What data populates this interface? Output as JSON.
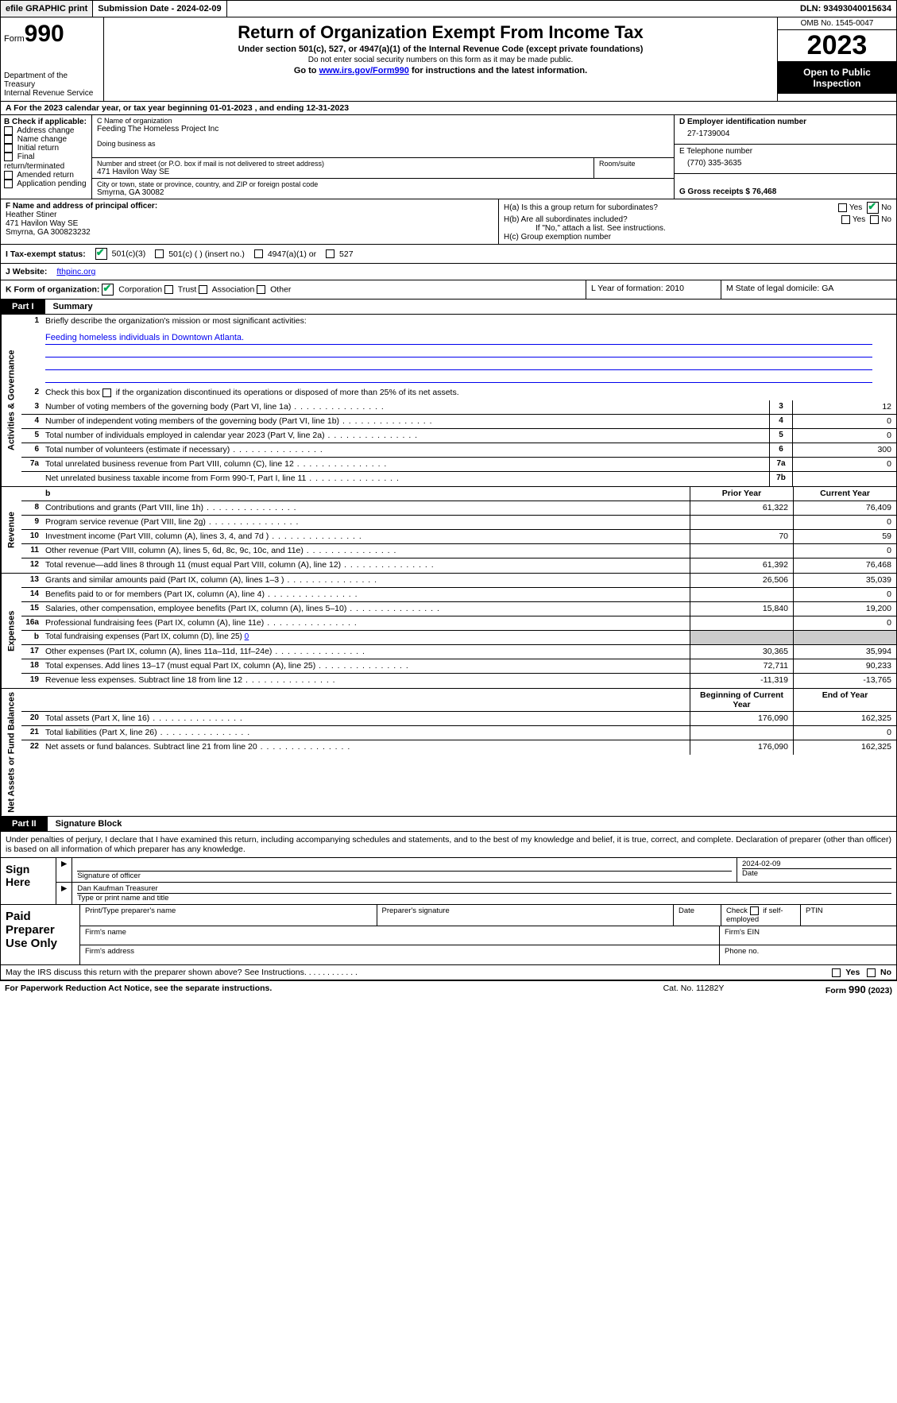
{
  "topbar": {
    "efile": "efile GRAPHIC print",
    "submission_label": "Submission Date - 2024-02-09",
    "dln_label": "DLN: 93493040015634"
  },
  "header": {
    "form_prefix": "Form",
    "form_num": "990",
    "dept": "Department of the Treasury",
    "irs": "Internal Revenue Service",
    "title": "Return of Organization Exempt From Income Tax",
    "sub1": "Under section 501(c), 527, or 4947(a)(1) of the Internal Revenue Code (except private foundations)",
    "sub2": "Do not enter social security numbers on this form as it may be made public.",
    "sub3_pre": "Go to ",
    "sub3_link": "www.irs.gov/Form990",
    "sub3_post": " for instructions and the latest information.",
    "omb": "OMB No. 1545-0047",
    "year": "2023",
    "open": "Open to Public Inspection"
  },
  "year_line": "For the 2023 calendar year, or tax year beginning 01-01-2023   , and ending 12-31-2023",
  "sectionB": {
    "title": "B Check if applicable:",
    "opts": [
      "Address change",
      "Name change",
      "Initial return",
      "Final return/terminated",
      "Amended return",
      "Application pending"
    ]
  },
  "sectionC": {
    "name_lbl": "C Name of organization",
    "name": "Feeding The Homeless Project Inc",
    "dba_lbl": "Doing business as",
    "addr_lbl": "Number and street (or P.O. box if mail is not delivered to street address)",
    "room_lbl": "Room/suite",
    "addr": "471 Havilon Way SE",
    "city_lbl": "City or town, state or province, country, and ZIP or foreign postal code",
    "city": "Smyrna, GA  30082"
  },
  "sectionD": {
    "ein_lbl": "D Employer identification number",
    "ein": "27-1739004",
    "tel_lbl": "E Telephone number",
    "tel": "(770) 335-3635",
    "gross_lbl": "G Gross receipts $ 76,468"
  },
  "sectionF": {
    "lbl": "F  Name and address of principal officer:",
    "name": "Heather Stiner",
    "addr1": "471 Havilon Way SE",
    "addr2": "Smyrna, GA  300823232"
  },
  "sectionH": {
    "ha": "H(a)  Is this a group return for subordinates?",
    "hb": "H(b)  Are all subordinates included?",
    "hb_note": "If \"No,\" attach a list. See instructions.",
    "hc": "H(c)  Group exemption number"
  },
  "sectionI": {
    "lbl": "I  Tax-exempt status:",
    "o1": "501(c)(3)",
    "o2": "501(c) (  ) (insert no.)",
    "o3": "4947(a)(1) or",
    "o4": "527"
  },
  "sectionJ": {
    "lbl": "J  Website:",
    "val": "fthpinc.org"
  },
  "sectionK": {
    "lbl": "K Form of organization:",
    "o1": "Corporation",
    "o2": "Trust",
    "o3": "Association",
    "o4": "Other"
  },
  "sectionL": {
    "lbl": "L Year of formation: 2010"
  },
  "sectionM": {
    "lbl": "M State of legal domicile: GA"
  },
  "part1": {
    "hdr": "Part I",
    "title": "Summary"
  },
  "summary": {
    "q1": "Briefly describe the organization's mission or most significant activities:",
    "mission": "Feeding homeless individuals in Downtown Atlanta.",
    "q2": "Check this box      if the organization discontinued its operations or disposed of more than 25% of its net assets.",
    "lines_gov": [
      {
        "n": "3",
        "d": "Number of voting members of the governing body (Part VI, line 1a)",
        "c": "3",
        "v": "12"
      },
      {
        "n": "4",
        "d": "Number of independent voting members of the governing body (Part VI, line 1b)",
        "c": "4",
        "v": "0"
      },
      {
        "n": "5",
        "d": "Total number of individuals employed in calendar year 2023 (Part V, line 2a)",
        "c": "5",
        "v": "0"
      },
      {
        "n": "6",
        "d": "Total number of volunteers (estimate if necessary)",
        "c": "6",
        "v": "300"
      },
      {
        "n": "7a",
        "d": "Total unrelated business revenue from Part VIII, column (C), line 12",
        "c": "7a",
        "v": "0"
      },
      {
        "n": "",
        "d": "Net unrelated business taxable income from Form 990-T, Part I, line 11",
        "c": "7b",
        "v": ""
      }
    ],
    "col_prior": "Prior Year",
    "col_curr": "Current Year",
    "lines_rev": [
      {
        "n": "8",
        "d": "Contributions and grants (Part VIII, line 1h)",
        "p": "61,322",
        "c": "76,409"
      },
      {
        "n": "9",
        "d": "Program service revenue (Part VIII, line 2g)",
        "p": "",
        "c": "0"
      },
      {
        "n": "10",
        "d": "Investment income (Part VIII, column (A), lines 3, 4, and 7d )",
        "p": "70",
        "c": "59"
      },
      {
        "n": "11",
        "d": "Other revenue (Part VIII, column (A), lines 5, 6d, 8c, 9c, 10c, and 11e)",
        "p": "",
        "c": "0"
      },
      {
        "n": "12",
        "d": "Total revenue—add lines 8 through 11 (must equal Part VIII, column (A), line 12)",
        "p": "61,392",
        "c": "76,468"
      }
    ],
    "lines_exp": [
      {
        "n": "13",
        "d": "Grants and similar amounts paid (Part IX, column (A), lines 1–3 )",
        "p": "26,506",
        "c": "35,039"
      },
      {
        "n": "14",
        "d": "Benefits paid to or for members (Part IX, column (A), line 4)",
        "p": "",
        "c": "0"
      },
      {
        "n": "15",
        "d": "Salaries, other compensation, employee benefits (Part IX, column (A), lines 5–10)",
        "p": "15,840",
        "c": "19,200"
      },
      {
        "n": "16a",
        "d": "Professional fundraising fees (Part IX, column (A), line 11e)",
        "p": "",
        "c": "0"
      },
      {
        "n": "b",
        "d": "Total fundraising expenses (Part IX, column (D), line 25) 0",
        "p": "GREY",
        "c": "GREY"
      },
      {
        "n": "17",
        "d": "Other expenses (Part IX, column (A), lines 11a–11d, 11f–24e)",
        "p": "30,365",
        "c": "35,994"
      },
      {
        "n": "18",
        "d": "Total expenses. Add lines 13–17 (must equal Part IX, column (A), line 25)",
        "p": "72,711",
        "c": "90,233"
      },
      {
        "n": "19",
        "d": "Revenue less expenses. Subtract line 18 from line 12",
        "p": "-11,319",
        "c": "-13,765"
      }
    ],
    "col_beg": "Beginning of Current Year",
    "col_end": "End of Year",
    "lines_net": [
      {
        "n": "20",
        "d": "Total assets (Part X, line 16)",
        "p": "176,090",
        "c": "162,325"
      },
      {
        "n": "21",
        "d": "Total liabilities (Part X, line 26)",
        "p": "",
        "c": "0"
      },
      {
        "n": "22",
        "d": "Net assets or fund balances. Subtract line 21 from line 20",
        "p": "176,090",
        "c": "162,325"
      }
    ],
    "vtab_gov": "Activities & Governance",
    "vtab_rev": "Revenue",
    "vtab_exp": "Expenses",
    "vtab_net": "Net Assets or Fund Balances"
  },
  "part2": {
    "hdr": "Part II",
    "title": "Signature Block"
  },
  "sig_decl": "Under penalties of perjury, I declare that I have examined this return, including accompanying schedules and statements, and to the best of my knowledge and belief, it is true, correct, and complete. Declaration of preparer (other than officer) is based on all information of which preparer has any knowledge.",
  "sign": {
    "here": "Sign Here",
    "sig_officer": "Signature of officer",
    "date": "Date",
    "date_val": "2024-02-09",
    "name": "Dan Kaufman Treasurer",
    "type_name": "Type or print name and title"
  },
  "prep": {
    "title": "Paid Preparer Use Only",
    "c1": "Print/Type preparer's name",
    "c2": "Preparer's signature",
    "c3": "Date",
    "c4": "Check       if self-employed",
    "c5": "PTIN",
    "firm_name": "Firm's name",
    "firm_ein": "Firm's EIN",
    "firm_addr": "Firm's address",
    "phone": "Phone no."
  },
  "may_discuss": "May the IRS discuss this return with the preparer shown above? See Instructions.",
  "footer": {
    "left": "For Paperwork Reduction Act Notice, see the separate instructions.",
    "mid": "Cat. No. 11282Y",
    "right": "Form 990 (2023)"
  },
  "yes": "Yes",
  "no": "No"
}
